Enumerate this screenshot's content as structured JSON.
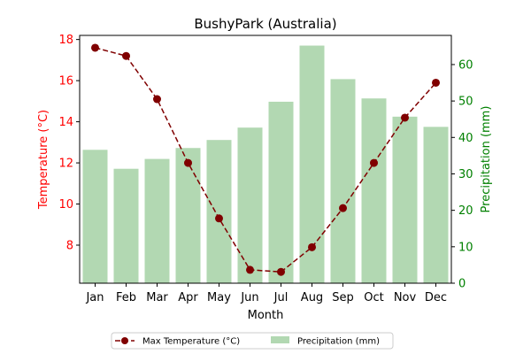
{
  "chart_data": {
    "type": "bar+line",
    "title": "BushyPark (Australia)",
    "xlabel": "Month",
    "categories": [
      "Jan",
      "Feb",
      "Mar",
      "Apr",
      "May",
      "Jun",
      "Jul",
      "Aug",
      "Sep",
      "Oct",
      "Nov",
      "Dec"
    ],
    "left_axis": {
      "label": "Temperature (°C)",
      "color": "#ff0000",
      "ylim": [
        6.15,
        18.2
      ],
      "ticks": [
        8,
        10,
        12,
        14,
        16,
        18
      ]
    },
    "right_axis": {
      "label": "Precipitation (mm)",
      "color": "#008000",
      "ylim": [
        0,
        68
      ],
      "ticks": [
        0,
        10,
        20,
        30,
        40,
        50,
        60
      ]
    },
    "series": [
      {
        "name": "Max Temperature (°C)",
        "type": "line",
        "axis": "left",
        "color": "#800000",
        "line_style": "dashed",
        "marker": "circle",
        "values": [
          17.6,
          17.2,
          15.1,
          12.0,
          9.3,
          6.8,
          6.7,
          7.9,
          9.8,
          12.0,
          14.2,
          15.9
        ]
      },
      {
        "name": "Precipitation (mm)",
        "type": "bar",
        "axis": "right",
        "color": "#b2d8b2",
        "values": [
          36.6,
          31.4,
          34.1,
          37.1,
          39.3,
          42.7,
          49.8,
          65.2,
          56.0,
          50.7,
          45.7,
          42.9
        ]
      }
    ],
    "legend_position": "bottom-center",
    "grid": false
  }
}
